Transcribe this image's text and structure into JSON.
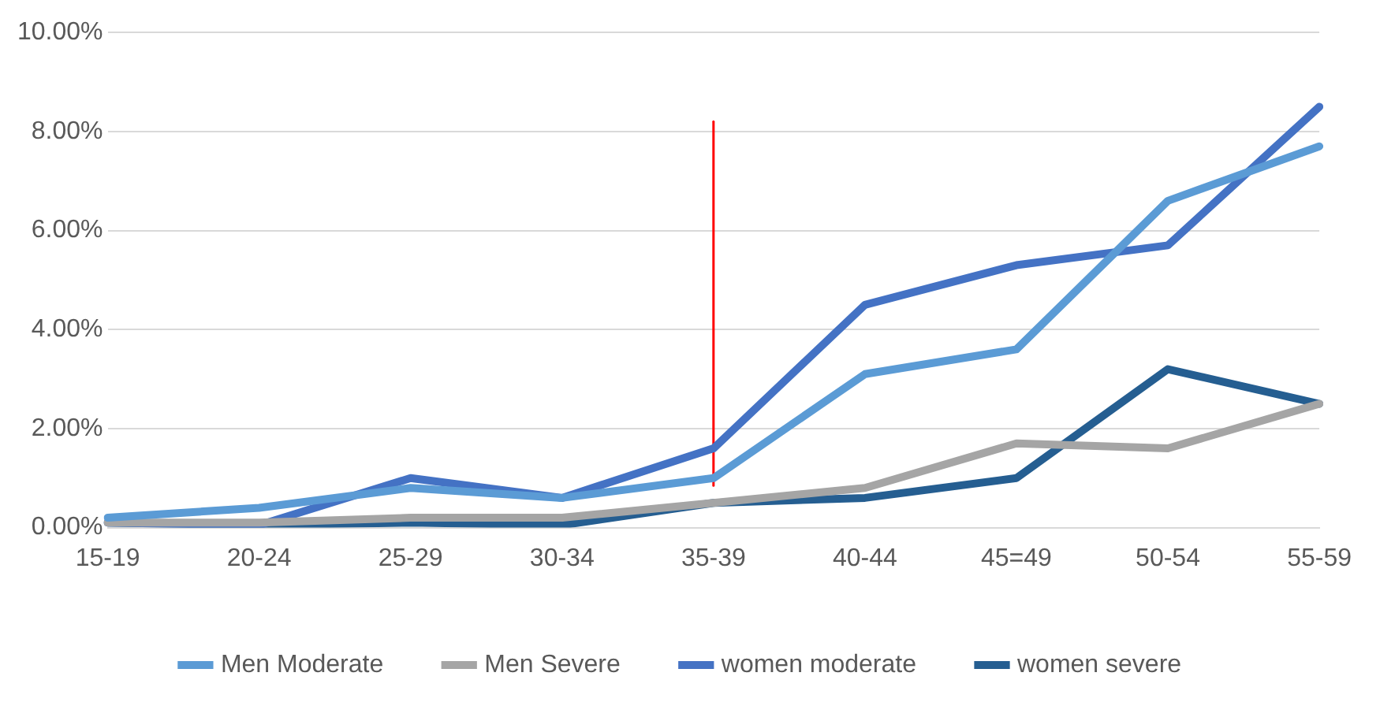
{
  "chart_data": {
    "type": "line",
    "categories": [
      "15-19",
      "20-24",
      "25-29",
      "30-34",
      "35-39",
      "40-44",
      "45=49",
      "50-54",
      "55-59"
    ],
    "series": [
      {
        "name": "Men Moderate",
        "color": "#5b9bd5",
        "values": [
          0.2,
          0.4,
          0.8,
          0.6,
          1.0,
          3.1,
          3.6,
          6.6,
          7.7
        ]
      },
      {
        "name": "Men Severe",
        "color": "#a5a5a5",
        "values": [
          0.1,
          0.1,
          0.2,
          0.2,
          0.5,
          0.8,
          1.7,
          1.6,
          2.5
        ]
      },
      {
        "name": "women moderate",
        "color": "#4472c4",
        "values": [
          0.1,
          0.05,
          1.0,
          0.6,
          1.6,
          4.5,
          5.3,
          5.7,
          8.5
        ]
      },
      {
        "name": "women severe",
        "color": "#255e91",
        "values": [
          0.1,
          0.05,
          0.1,
          0.05,
          0.5,
          0.6,
          1.0,
          3.2,
          2.5
        ]
      },
      {
        "color": "#ff0000",
        "x": [
          "35-39",
          "35-39"
        ],
        "values": [
          0.85,
          8.2
        ]
      }
    ],
    "ylim": [
      0,
      10
    ],
    "yticks": [
      {
        "value": 0,
        "label": "0.00%"
      },
      {
        "value": 2,
        "label": "2.00%"
      },
      {
        "value": 4,
        "label": "4.00%"
      },
      {
        "value": 6,
        "label": "6.00%"
      },
      {
        "value": 8,
        "label": "8.00%"
      },
      {
        "value": 10,
        "label": "10.00%"
      }
    ],
    "grid": "y",
    "legend": "bottom",
    "marker": "none",
    "line_style": "solid"
  }
}
